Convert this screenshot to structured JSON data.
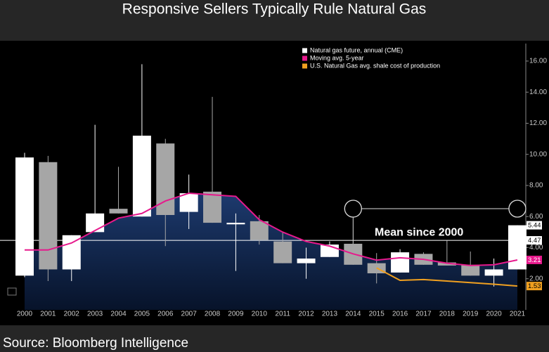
{
  "chart_data": {
    "type": "candlestick",
    "title": "Responsive Sellers Typically Rule Natural Gas",
    "source": "Source: Bloomberg Intelligence",
    "categories": [
      "2000",
      "2001",
      "2002",
      "2003",
      "2004",
      "2005",
      "2006",
      "2007",
      "2008",
      "2009",
      "2010",
      "2011",
      "2012",
      "2013",
      "2014",
      "2015",
      "2016",
      "2017",
      "2018",
      "2019",
      "2020",
      "2021"
    ],
    "series": [
      {
        "name": "Natural gas future, annual (CME)",
        "color": "#ffffff",
        "up_color": "#ffffff",
        "down_color": "#a6a6a6",
        "open": [
          2.2,
          9.5,
          2.6,
          5.0,
          6.5,
          6.0,
          10.7,
          6.3,
          7.6,
          5.5,
          5.7,
          4.4,
          3.0,
          3.4,
          4.25,
          3.0,
          2.4,
          3.6,
          3.05,
          2.9,
          2.2,
          2.6
        ],
        "high": [
          10.1,
          9.9,
          4.8,
          11.9,
          9.2,
          15.8,
          11.0,
          8.7,
          13.7,
          6.2,
          6.1,
          5.0,
          4.0,
          4.4,
          4.3,
          3.65,
          3.9,
          3.7,
          4.45,
          3.75,
          3.3,
          5.44
        ],
        "low": [
          2.1,
          1.85,
          1.85,
          5.0,
          6.2,
          6.0,
          4.1,
          5.2,
          5.6,
          2.5,
          4.2,
          3.0,
          2.0,
          3.4,
          2.9,
          1.7,
          2.4,
          2.9,
          2.85,
          2.2,
          1.5,
          2.6
        ],
        "close": [
          9.8,
          2.6,
          4.8,
          6.2,
          6.2,
          11.2,
          6.1,
          7.5,
          5.6,
          5.6,
          4.5,
          3.0,
          3.3,
          4.2,
          2.9,
          2.35,
          3.7,
          2.9,
          2.85,
          2.2,
          2.6,
          5.44
        ]
      },
      {
        "name": "Moving avg. 5-year",
        "type": "line",
        "color": "#e6198c",
        "values": [
          3.85,
          3.85,
          4.3,
          5.1,
          5.9,
          6.2,
          7.0,
          7.5,
          7.4,
          7.3,
          5.8,
          5.0,
          4.4,
          4.1,
          3.6,
          3.2,
          3.35,
          3.25,
          3.0,
          2.85,
          2.9,
          3.21
        ]
      },
      {
        "name": "U.S. Natural Gas avg. shale cost of production",
        "type": "line",
        "color": "#f0a020",
        "values": [
          null,
          null,
          null,
          null,
          null,
          null,
          null,
          null,
          null,
          null,
          null,
          null,
          null,
          null,
          null,
          2.7,
          1.9,
          1.95,
          1.85,
          1.75,
          1.65,
          1.53
        ]
      }
    ],
    "mean": {
      "label": "Mean since 2000",
      "value": 4.47
    },
    "ylim": [
      0,
      16.9
    ],
    "yticks": [
      {
        "value": 2,
        "label": "2.00"
      },
      {
        "value": 4,
        "label": "4.00"
      },
      {
        "value": 6,
        "label": "6.00"
      },
      {
        "value": 8,
        "label": "8.00"
      },
      {
        "value": 10,
        "label": "10.00"
      },
      {
        "value": 12,
        "label": "12.00"
      },
      {
        "value": 14,
        "label": "14.00"
      },
      {
        "value": 16,
        "label": "16.00"
      }
    ],
    "y_axis_side": "right"
  }
}
